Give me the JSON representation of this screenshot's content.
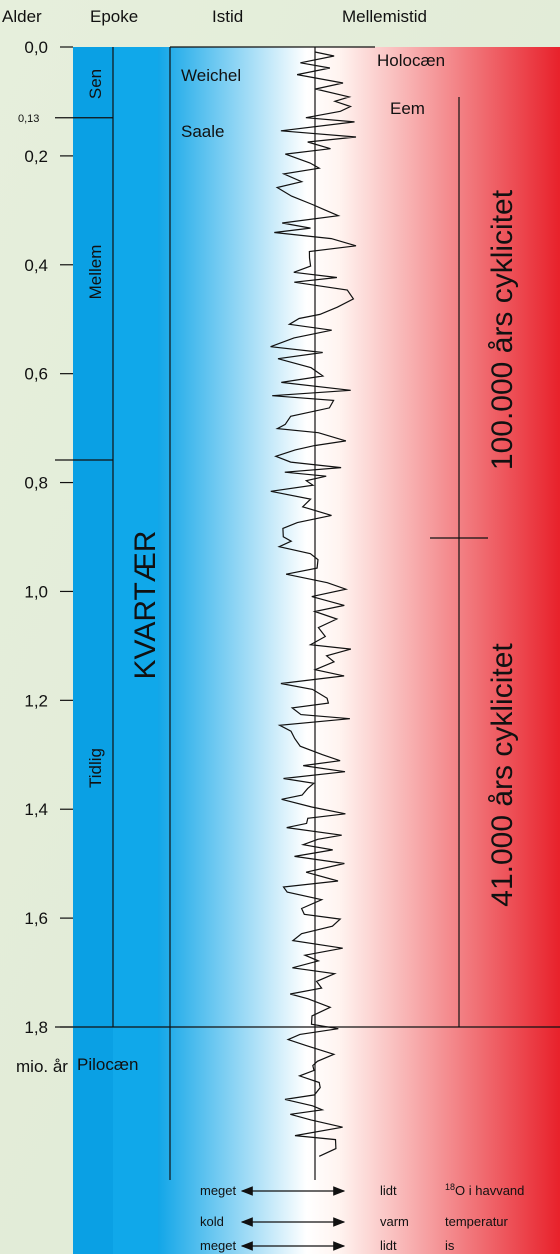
{
  "header": {
    "age": "Alder",
    "epoch": "Epoke",
    "glacial": "Istid",
    "interglacial": "Mellemistid"
  },
  "axis": {
    "ticks": [
      {
        "value": 0,
        "label": "0,0"
      },
      {
        "value": 0.2,
        "label": "0,2"
      },
      {
        "value": 0.4,
        "label": "0,4"
      },
      {
        "value": 0.6,
        "label": "0,6"
      },
      {
        "value": 0.8,
        "label": "0,8"
      },
      {
        "value": 1.0,
        "label": "1,0"
      },
      {
        "value": 1.2,
        "label": "1,2"
      },
      {
        "value": 1.4,
        "label": "1,4"
      },
      {
        "value": 1.6,
        "label": "1,6"
      },
      {
        "value": 1.8,
        "label": "1,8"
      }
    ],
    "minor_ticks": [
      {
        "value": 0.13,
        "label": "0,13"
      }
    ],
    "unit": "mio. år"
  },
  "epochs": {
    "late": "Sen",
    "middle": "Mellem",
    "early": "Tidlig",
    "period": "KVARTÆR",
    "pliocene": "Pilocæn"
  },
  "stages": {
    "weichel": "Weichel",
    "saale": "Saale",
    "holocene": "Holocæn",
    "eem": "Eem"
  },
  "cycles": {
    "upper": "100.000 års cyklicitet",
    "lower": "41.000 års cyklicitet"
  },
  "legend": {
    "rows": [
      {
        "left": "meget",
        "right": "lidt",
        "sup": "18",
        "note": "O i havvand"
      },
      {
        "left": "kold",
        "right": "varm",
        "note": "temperatur"
      },
      {
        "left": "meget",
        "right": "lidt",
        "note": "is"
      }
    ]
  }
}
